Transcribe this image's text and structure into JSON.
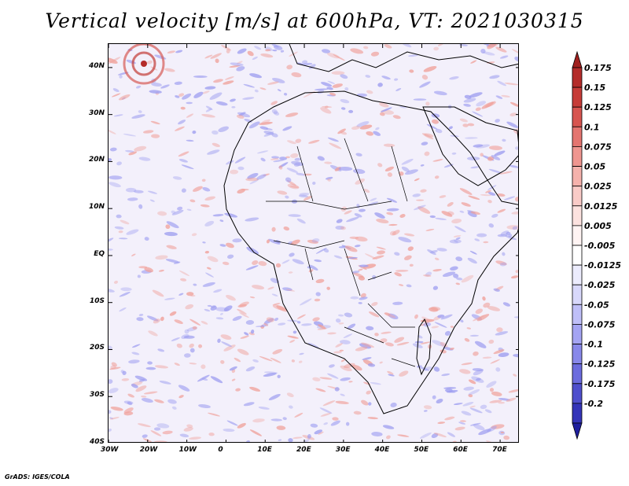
{
  "title": "Vertical velocity [m/s] at 600hPa, VT: 2021030315",
  "credit": "GrADS: IGES/COLA",
  "map": {
    "region": "Africa",
    "variable": "Vertical velocity",
    "units": "m/s",
    "level": "600hPa",
    "valid_time": "2021030315",
    "lon_range": [
      -30,
      75
    ],
    "lat_range": [
      -40,
      45
    ],
    "lat_ticks": [
      {
        "value": 40,
        "label": "40N"
      },
      {
        "value": 30,
        "label": "30N"
      },
      {
        "value": 20,
        "label": "20N"
      },
      {
        "value": 10,
        "label": "10N"
      },
      {
        "value": 0,
        "label": "EQ"
      },
      {
        "value": -10,
        "label": "10S"
      },
      {
        "value": -20,
        "label": "20S"
      },
      {
        "value": -30,
        "label": "30S"
      },
      {
        "value": -40,
        "label": "40S"
      }
    ],
    "lon_ticks": [
      {
        "value": -30,
        "label": "30W"
      },
      {
        "value": -20,
        "label": "20W"
      },
      {
        "value": -10,
        "label": "10W"
      },
      {
        "value": 0,
        "label": "0"
      },
      {
        "value": 10,
        "label": "10E"
      },
      {
        "value": 20,
        "label": "20E"
      },
      {
        "value": 30,
        "label": "30E"
      },
      {
        "value": 40,
        "label": "40E"
      },
      {
        "value": 50,
        "label": "50E"
      },
      {
        "value": 60,
        "label": "60E"
      },
      {
        "value": 70,
        "label": "70E"
      }
    ]
  },
  "colorbar": {
    "levels": [
      {
        "label": "0.175",
        "color": "#b42c2a"
      },
      {
        "label": "0.15",
        "color": "#c63c38"
      },
      {
        "label": "0.125",
        "color": "#d75550"
      },
      {
        "label": "0.1",
        "color": "#e47570"
      },
      {
        "label": "0.075",
        "color": "#ef9690"
      },
      {
        "label": "0.05",
        "color": "#f5b2ac"
      },
      {
        "label": "0.025",
        "color": "#f9cbc7"
      },
      {
        "label": "0.0125",
        "color": "#fce2df"
      },
      {
        "label": "0.005",
        "color": "#fff4f3"
      },
      {
        "label": "-0.005",
        "color": "#ffffff"
      },
      {
        "label": "-0.0125",
        "color": "#ececfd"
      },
      {
        "label": "-0.025",
        "color": "#d8d8fb"
      },
      {
        "label": "-0.05",
        "color": "#bfbff8"
      },
      {
        "label": "-0.075",
        "color": "#a4a4f3"
      },
      {
        "label": "-0.1",
        "color": "#8888ea"
      },
      {
        "label": "-0.125",
        "color": "#6c6cde"
      },
      {
        "label": "-0.175",
        "color": "#4f4fcd"
      },
      {
        "label": "-0.2",
        "color": "#3434b8"
      }
    ],
    "overflow_high_color": "#a0201e",
    "overflow_low_color": "#1f1f9e",
    "field_positive_color": "#f0a09a",
    "field_negative_color": "#9d9df0"
  }
}
